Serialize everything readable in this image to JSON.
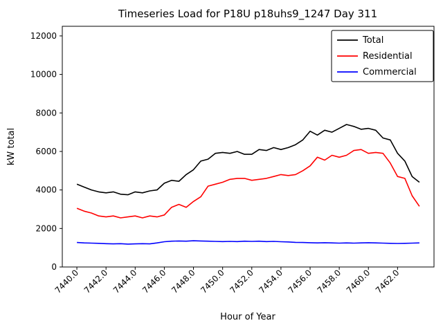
{
  "figure": {
    "background": "#ffffff"
  },
  "chart_data": {
    "type": "line",
    "title": "Timeseries Load for P18U p18uhs9_1247  Day 311",
    "xlabel": "Hour of Year",
    "ylabel": "kW total",
    "grid": false,
    "legend_position": "upper right",
    "xlim": [
      7439.0,
      7464.5
    ],
    "ylim": [
      0,
      12500
    ],
    "xticks": [
      {
        "v": 7440,
        "label": "7440.0"
      },
      {
        "v": 7442,
        "label": "7442.0"
      },
      {
        "v": 7444,
        "label": "7444.0"
      },
      {
        "v": 7446,
        "label": "7446.0"
      },
      {
        "v": 7448,
        "label": "7448.0"
      },
      {
        "v": 7450,
        "label": "7450.0"
      },
      {
        "v": 7452,
        "label": "7452.0"
      },
      {
        "v": 7454,
        "label": "7454.0"
      },
      {
        "v": 7456,
        "label": "7456.0"
      },
      {
        "v": 7458,
        "label": "7458.0"
      },
      {
        "v": 7460,
        "label": "7460.0"
      },
      {
        "v": 7462,
        "label": "7462.0"
      }
    ],
    "yticks": [
      {
        "v": 0,
        "label": "0"
      },
      {
        "v": 2000,
        "label": "2000"
      },
      {
        "v": 4000,
        "label": "4000"
      },
      {
        "v": 6000,
        "label": "6000"
      },
      {
        "v": 8000,
        "label": "8000"
      },
      {
        "v": 10000,
        "label": "10000"
      },
      {
        "v": 12000,
        "label": "12000"
      }
    ],
    "x": [
      7440,
      7440.5,
      7441,
      7441.5,
      7442,
      7442.5,
      7443,
      7443.5,
      7444,
      7444.5,
      7445,
      7445.5,
      7446,
      7446.5,
      7447,
      7447.5,
      7448,
      7448.5,
      7449,
      7449.5,
      7450,
      7450.5,
      7451,
      7451.5,
      7452,
      7452.5,
      7453,
      7453.5,
      7454,
      7454.5,
      7455,
      7455.5,
      7456,
      7456.5,
      7457,
      7457.5,
      7458,
      7458.5,
      7459,
      7459.5,
      7460,
      7460.5,
      7461,
      7461.5,
      7462,
      7462.5,
      7463,
      7463.5
    ],
    "series": [
      {
        "name": "Total",
        "color": "#000000",
        "values": [
          4300,
          4150,
          4000,
          3900,
          3850,
          3900,
          3780,
          3750,
          3900,
          3850,
          3950,
          4000,
          4350,
          4500,
          4450,
          4800,
          5050,
          5500,
          5600,
          5900,
          5950,
          5900,
          6000,
          5850,
          5850,
          6100,
          6050,
          6200,
          6100,
          6200,
          6350,
          6600,
          7050,
          6850,
          7100,
          7000,
          7200,
          7400,
          7300,
          7150,
          7200,
          7100,
          6700,
          6600,
          5900,
          5500,
          4700,
          4400
        ]
      },
      {
        "name": "Residential",
        "color": "#ff0000",
        "values": [
          3050,
          2900,
          2800,
          2650,
          2600,
          2650,
          2550,
          2600,
          2650,
          2550,
          2650,
          2600,
          2700,
          3100,
          3250,
          3100,
          3400,
          3650,
          4200,
          4300,
          4400,
          4550,
          4600,
          4600,
          4500,
          4550,
          4600,
          4700,
          4800,
          4750,
          4800,
          5000,
          5250,
          5700,
          5550,
          5800,
          5700,
          5800,
          6050,
          6100,
          5900,
          5950,
          5900,
          5400,
          4700,
          4600,
          3700,
          3150
        ]
      },
      {
        "name": "Commercial",
        "color": "#0000ff",
        "values": [
          1270,
          1250,
          1240,
          1230,
          1210,
          1200,
          1210,
          1190,
          1200,
          1210,
          1200,
          1250,
          1310,
          1340,
          1350,
          1340,
          1360,
          1350,
          1340,
          1330,
          1320,
          1330,
          1320,
          1340,
          1330,
          1340,
          1320,
          1330,
          1310,
          1300,
          1280,
          1270,
          1260,
          1250,
          1260,
          1250,
          1240,
          1250,
          1240,
          1250,
          1260,
          1250,
          1240,
          1230,
          1220,
          1230,
          1240,
          1250
        ]
      }
    ]
  }
}
